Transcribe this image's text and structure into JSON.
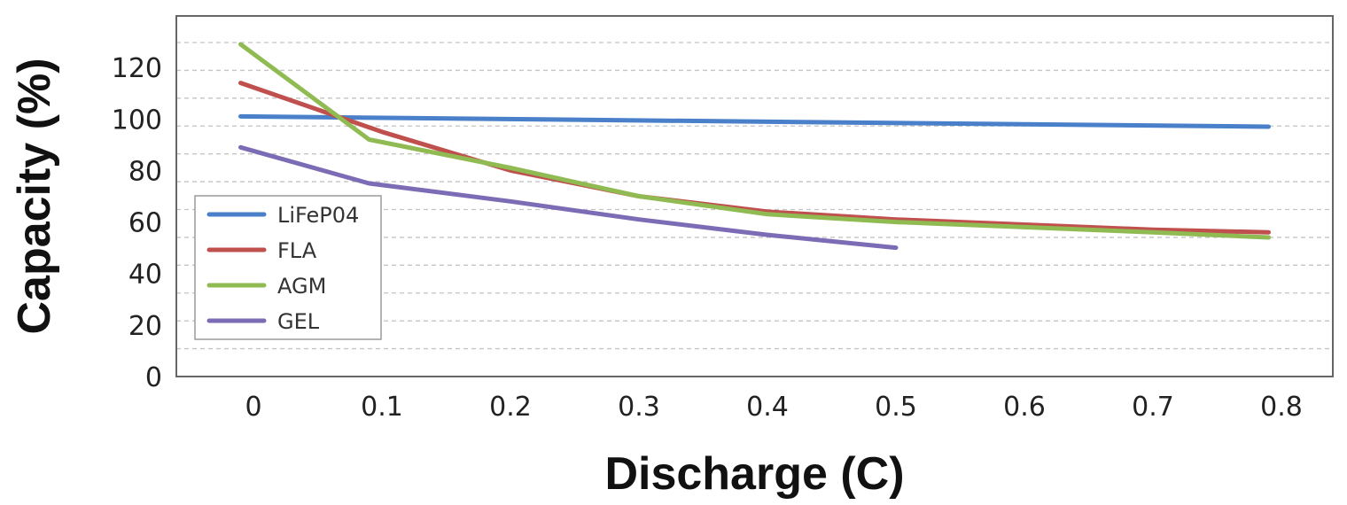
{
  "chart_data": {
    "type": "line",
    "title": "",
    "xlabel": "Discharge (C)",
    "ylabel": "Capacity (%)",
    "xlim": [
      -0.06,
      0.84
    ],
    "ylim": [
      0,
      140
    ],
    "x_ticks": [
      0,
      0.1,
      0.2,
      0.3,
      0.4,
      0.5,
      0.6,
      0.7,
      0.8
    ],
    "x_tick_labels": [
      "0",
      "0.1",
      "0.2",
      "0.3",
      "0.4",
      "0.5",
      "0.6",
      "0.7",
      "0.8"
    ],
    "y_ticks": [
      0,
      20,
      40,
      60,
      80,
      100,
      120
    ],
    "y_tick_labels": [
      "0",
      "20",
      "40",
      "60",
      "80",
      "100",
      "120"
    ],
    "grid": true,
    "legend_position": "left",
    "series": [
      {
        "name": "LiFeP04",
        "color": "#4a7fc9",
        "x": [
          -0.01,
          0.79
        ],
        "y": [
          101,
          97
        ]
      },
      {
        "name": "FLA",
        "color": "#c0504d",
        "x": [
          -0.01,
          0.1,
          0.2,
          0.3,
          0.4,
          0.5,
          0.6,
          0.7,
          0.79
        ],
        "y": [
          114,
          95,
          80,
          70,
          64,
          61,
          59,
          57,
          56
        ]
      },
      {
        "name": "AGM",
        "color": "#8fbb52",
        "x": [
          -0.01,
          0.09,
          0.2,
          0.3,
          0.4,
          0.5,
          0.6,
          0.7,
          0.79
        ],
        "y": [
          129,
          92,
          81,
          70,
          63,
          60,
          58,
          56,
          54
        ]
      },
      {
        "name": "GEL",
        "color": "#7c6bb5",
        "x": [
          -0.01,
          0.09,
          0.2,
          0.3,
          0.4,
          0.5
        ],
        "y": [
          89,
          75,
          68,
          61,
          55,
          50
        ]
      }
    ]
  }
}
